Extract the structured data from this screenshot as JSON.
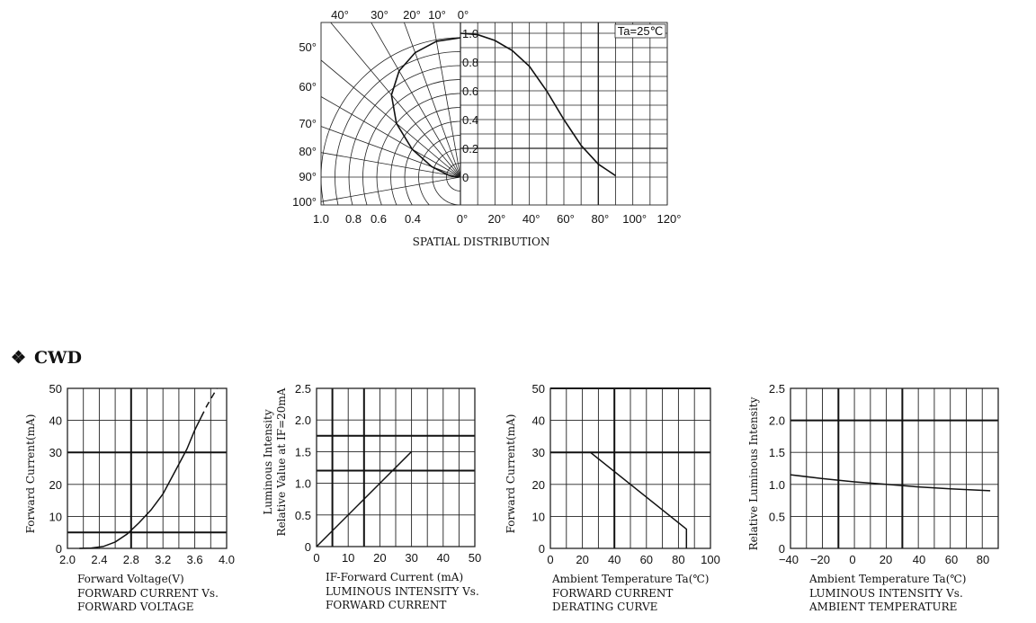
{
  "section": {
    "marker": "❖",
    "title": "CWD"
  },
  "chart_data": [
    {
      "type": "polar",
      "title": "SPATIAL DISTRIBUTION",
      "annotation": "Ta=25℃",
      "angle_labels": [
        "40°",
        "30°",
        "20°",
        "10°",
        "0°",
        "50°",
        "60°",
        "70°",
        "80°",
        "90°",
        "100°"
      ],
      "angle_values": [
        40,
        30,
        20,
        10,
        0,
        50,
        60,
        70,
        80,
        90,
        100
      ],
      "radial_labels_left": [
        "1.0",
        "0.8",
        "0.6",
        "0.4"
      ],
      "radial_values_left": [
        1.0,
        0.8,
        0.6,
        0.4
      ],
      "radial_labels_center": [
        "1.0",
        "0.8",
        "0.6",
        "0.4",
        "0.2",
        "0"
      ],
      "radial_values_center": [
        1.0,
        0.8,
        0.6,
        0.4,
        0.2,
        0
      ],
      "x_labels_right": [
        "0°",
        "20°",
        "40°",
        "60°",
        "80°",
        "100°",
        "120°"
      ],
      "x_values_right": [
        0,
        20,
        40,
        60,
        80,
        100,
        120
      ],
      "series": [
        {
          "x": [
            0,
            10,
            20,
            30,
            40,
            50,
            60,
            70,
            80,
            85,
            90
          ],
          "y": [
            1.0,
            0.99,
            0.95,
            0.88,
            0.77,
            0.6,
            0.4,
            0.22,
            0.09,
            0.05,
            0.01
          ]
        }
      ]
    },
    {
      "type": "line",
      "xlabel": "Forward Voltage(V)",
      "ylabel": "Forward Current(mA)",
      "caption_lines": [
        "FORWARD CURRENT Vs.",
        "FORWARD VOLTAGE"
      ],
      "x_ticks": [
        "2.0",
        "2.4",
        "2.8",
        "3.2",
        "3.6",
        "4.0"
      ],
      "y_ticks": [
        "0",
        "10",
        "20",
        "30",
        "40",
        "50"
      ],
      "xlim": [
        2.0,
        4.0
      ],
      "ylim": [
        0,
        50
      ],
      "series": [
        {
          "x": [
            2.15,
            2.3,
            2.45,
            2.6,
            2.75,
            2.9,
            3.05,
            3.2,
            3.35,
            3.5,
            3.6,
            3.68
          ],
          "y": [
            0,
            0.1,
            0.6,
            2,
            4.5,
            8,
            12,
            17,
            24,
            31,
            37,
            41
          ],
          "style": "solid"
        },
        {
          "x": [
            3.68,
            3.75,
            3.82,
            3.88
          ],
          "y": [
            41,
            44.5,
            47.5,
            50
          ],
          "style": "dashed"
        }
      ]
    },
    {
      "type": "line",
      "xlabel": "IF-Forward Current (mA)",
      "ylabel_lines": [
        "Luminous Intensity",
        "Relative Value at IF=20mA"
      ],
      "caption_lines": [
        "LUMINOUS INTENSITY Vs.",
        "FORWARD CURRENT"
      ],
      "x_ticks": [
        "0",
        "10",
        "20",
        "30",
        "40",
        "50"
      ],
      "y_ticks": [
        "0",
        "0.5",
        "1.0",
        "1.5",
        "2.0",
        "2.5"
      ],
      "xlim": [
        0,
        50
      ],
      "ylim": [
        0,
        2.5
      ],
      "series": [
        {
          "x": [
            0,
            30
          ],
          "y": [
            0,
            1.5
          ]
        }
      ]
    },
    {
      "type": "line",
      "xlabel": "Ambient Temperature Ta(℃)",
      "ylabel": "Forward Current(mA)",
      "caption_lines": [
        "FORWARD CURRENT",
        "DERATING CURVE"
      ],
      "x_ticks": [
        "0",
        "20",
        "40",
        "60",
        "80",
        "100"
      ],
      "y_ticks": [
        "0",
        "10",
        "20",
        "30",
        "40",
        "50"
      ],
      "xlim": [
        0,
        100
      ],
      "ylim": [
        0,
        50
      ],
      "series": [
        {
          "x": [
            0,
            25,
            85,
            85
          ],
          "y": [
            30,
            30,
            6,
            0
          ]
        }
      ]
    },
    {
      "type": "line",
      "xlabel": "Ambient Temperature Ta(℃)",
      "ylabel": "Relative Luminous Intensity",
      "caption_lines": [
        "LUMINOUS INTENSITY Vs.",
        "AMBIENT TEMPERATURE"
      ],
      "x_ticks": [
        "−40",
        "−20",
        "0",
        "20",
        "40",
        "60",
        "80"
      ],
      "y_ticks": [
        "0",
        "0.5",
        "1.0",
        "1.5",
        "2.0",
        "2.5"
      ],
      "xlim": [
        -40,
        90
      ],
      "ylim": [
        0,
        2.5
      ],
      "series": [
        {
          "x": [
            -40,
            -20,
            0,
            20,
            40,
            60,
            85
          ],
          "y": [
            1.15,
            1.09,
            1.04,
            1.0,
            0.96,
            0.93,
            0.9
          ]
        }
      ]
    }
  ]
}
